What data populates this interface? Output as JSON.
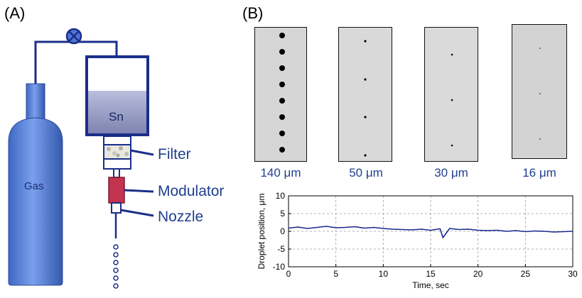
{
  "panels": {
    "a_label": "(A)",
    "b_label": "(B)"
  },
  "diagram": {
    "gas_label": "Gas",
    "tin_label": "Sn",
    "filter_label": "Filter",
    "modulator_label": "Modulator",
    "nozzle_label": "Nozzle",
    "colors": {
      "cylinder": "#5c86d8",
      "line": "#1b2e8a",
      "chamber_fill": "#9a9fc6",
      "modulator": "#c4334f"
    }
  },
  "images": [
    {
      "label": "140 μm",
      "droplets": 8
    },
    {
      "label": "50 μm",
      "droplets": 4
    },
    {
      "label": "30 μm",
      "droplets": 3
    },
    {
      "label": "16 μm",
      "droplets": 3
    }
  ],
  "chart_data": {
    "type": "line",
    "xlabel": "Time, sec",
    "ylabel": "Droplet position, μm",
    "xlim": [
      0,
      30
    ],
    "ylim": [
      -10,
      10
    ],
    "xticks": [
      0,
      5,
      10,
      15,
      20,
      25,
      30
    ],
    "yticks": [
      10,
      5,
      0,
      -5,
      -10
    ],
    "grid": true,
    "series_color": "#1a2a8f",
    "series": [
      {
        "x": [
          0,
          1,
          2,
          3,
          4,
          5,
          6,
          7,
          8,
          9,
          10,
          11,
          12,
          13,
          14,
          15,
          16,
          16.3,
          17,
          18,
          19,
          20,
          21,
          22,
          23,
          24,
          25,
          26,
          27,
          28,
          29,
          30
        ],
        "y": [
          0.9,
          1.2,
          0.8,
          1.1,
          1.4,
          1.0,
          1.1,
          1.3,
          0.9,
          1.1,
          0.8,
          0.6,
          0.5,
          0.4,
          0.6,
          0.3,
          0.7,
          -1.8,
          0.8,
          0.5,
          0.6,
          0.3,
          0.2,
          0.3,
          0.0,
          0.2,
          -0.1,
          0.1,
          0.0,
          -0.2,
          -0.1,
          0.0
        ]
      }
    ]
  }
}
